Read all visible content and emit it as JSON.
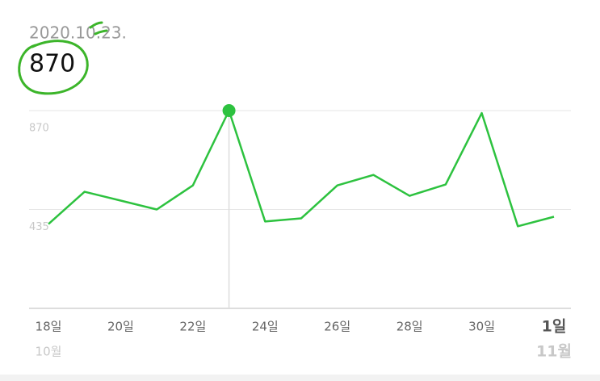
{
  "chart_data": {
    "type": "line",
    "date_label": "2020.10.23.",
    "categories": [
      "18일",
      null,
      "20일",
      null,
      "22일",
      null,
      "24일",
      null,
      "26일",
      null,
      "28일",
      null,
      "30일",
      null,
      "1일"
    ],
    "month_labels": [
      "10월",
      null,
      null,
      null,
      null,
      null,
      null,
      null,
      null,
      null,
      null,
      null,
      null,
      null,
      "11월"
    ],
    "series": [
      {
        "color": "#2dc23f",
        "values": [
          371,
          513,
          474,
          435,
          541,
          870,
          382,
          396,
          541,
          587,
          495,
          545,
          859,
          361,
          403
        ]
      }
    ],
    "ylim": [
      0,
      870
    ],
    "yticks": [
      435,
      870
    ],
    "grid": true
  }
}
